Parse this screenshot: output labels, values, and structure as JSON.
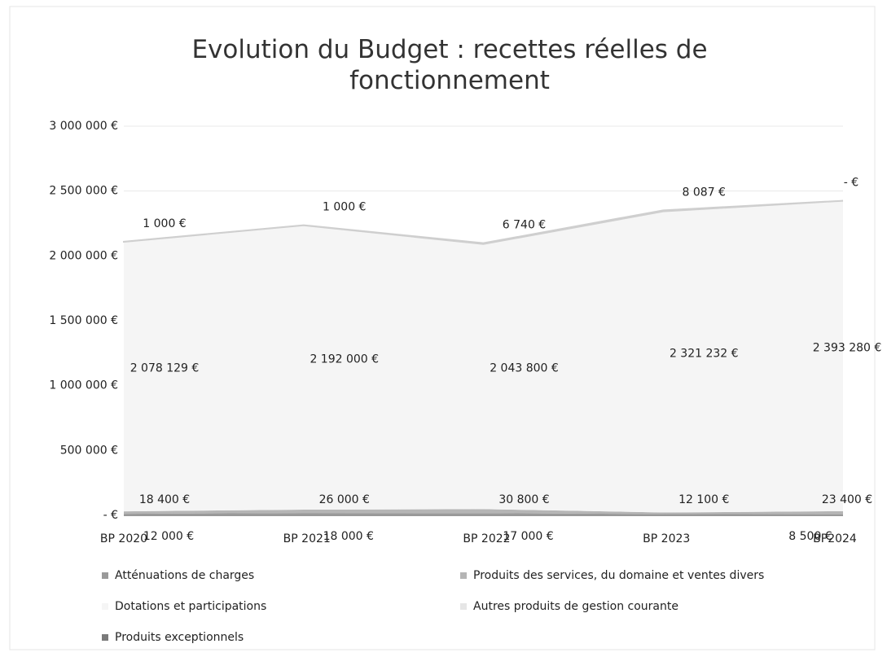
{
  "chart_data": {
    "type": "stacked_area",
    "title": "Evolution du Budget : recettes réelles de fonctionnement",
    "categories": [
      "BP 2020",
      "BP 2021",
      "BP 2022",
      "BP 2023",
      "BP2024"
    ],
    "ylim": [
      0,
      3000000
    ],
    "yticks": [
      {
        "value": 0,
        "label": "- €"
      },
      {
        "value": 500000,
        "label": "500 000 €"
      },
      {
        "value": 1000000,
        "label": "1 000 000 €"
      },
      {
        "value": 1500000,
        "label": "1 500 000 €"
      },
      {
        "value": 2000000,
        "label": "2 000 000 €"
      },
      {
        "value": 2500000,
        "label": "2 500 000 €"
      },
      {
        "value": 3000000,
        "label": "3 000 000 €"
      }
    ],
    "grid": true,
    "legend": "bottom",
    "series": [
      {
        "name": "Atténuations de charges",
        "color": "#9a9a9a",
        "values": [
          12000,
          18000,
          17000,
          10000,
          8500
        ],
        "value_labels": [
          "12 000 €",
          "18 000 €",
          "17 000 €",
          null,
          "8 500 €"
        ]
      },
      {
        "name": "Produits des services, du domaine et ventes divers",
        "color": "#b5b5b5",
        "values": [
          18400,
          26000,
          30800,
          12100,
          23400
        ],
        "value_labels": [
          "18 400 €",
          "26 000 €",
          "30 800 €",
          "12 100 €",
          "23 400 €"
        ]
      },
      {
        "name": "Dotations et participations",
        "color": "#f5f5f5",
        "values": [
          2078129,
          2192000,
          2043800,
          2321232,
          2393280
        ],
        "value_labels": [
          "2 078 129 €",
          "2 192 000 €",
          "2 043 800 €",
          "2 321 232 €",
          "2 393 280 €"
        ]
      },
      {
        "name": "Autres produits de gestion courante",
        "color": "#e6e6e6",
        "values": [
          1000,
          1000,
          6740,
          8087,
          0
        ],
        "value_labels": [
          "1 000 €",
          "1 000 €",
          "6 740 €",
          "8 087 €",
          "- €"
        ]
      },
      {
        "name": "Produits exceptionnels",
        "color": "#7a7a7a",
        "values": [
          0,
          0,
          0,
          0,
          0
        ]
      }
    ]
  }
}
